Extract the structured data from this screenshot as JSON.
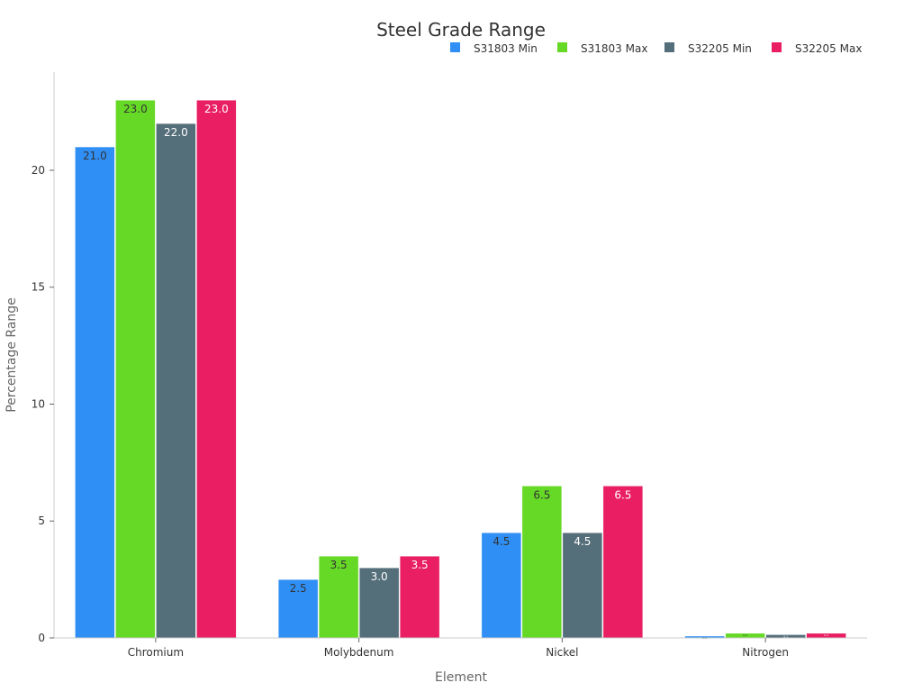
{
  "chart_data": {
    "type": "bar",
    "title": "Steel Grade Range",
    "xlabel": "Element",
    "ylabel": "Percentage Range",
    "categories": [
      "Chromium",
      "Molybdenum",
      "Nickel",
      "Nitrogen"
    ],
    "series": [
      {
        "name": "S31803 Min",
        "color": "#2f8ff5",
        "label_color": "#333333",
        "values": [
          21.0,
          2.5,
          4.5,
          0.08
        ]
      },
      {
        "name": "S31803 Max",
        "color": "#66d926",
        "label_color": "#333333",
        "values": [
          23.0,
          3.5,
          6.5,
          0.2
        ]
      },
      {
        "name": "S32205 Min",
        "color": "#546e7a",
        "label_color": "#ffffff",
        "values": [
          22.0,
          3.0,
          4.5,
          0.14
        ]
      },
      {
        "name": "S32205 Max",
        "color": "#e91e63",
        "label_color": "#ffffff",
        "values": [
          23.0,
          3.5,
          6.5,
          0.2
        ]
      }
    ],
    "ylim": [
      0,
      24.2
    ],
    "yticks": [
      0,
      5,
      10,
      15,
      20
    ],
    "grid": false,
    "legend_position": "top-right"
  }
}
